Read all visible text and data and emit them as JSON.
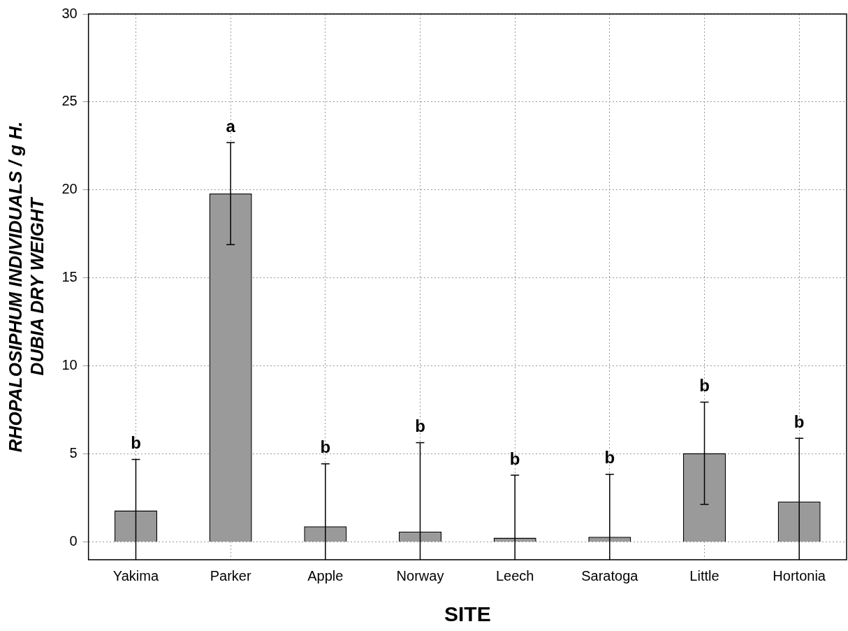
{
  "chart_data": {
    "type": "bar",
    "xlabel": "SITE",
    "ylabel": "RHOPALOSIPHUM INDIVIDUALS / g H. DUBIA DRY WEIGHT",
    "categories": [
      "Yakima",
      "Parker",
      "Apple",
      "Norway",
      "Leech",
      "Saratoga",
      "Little",
      "Hortonia"
    ],
    "values": [
      1.8,
      19.8,
      0.9,
      0.6,
      0.25,
      0.3,
      5.05,
      2.3
    ],
    "errors": [
      [
        -1,
        4.7
      ],
      [
        16.9,
        22.7
      ],
      [
        -1,
        4.45
      ],
      [
        -1,
        5.65
      ],
      [
        -1,
        3.8
      ],
      [
        -1,
        3.85
      ],
      [
        2.15,
        7.95
      ],
      [
        -1,
        5.9
      ]
    ],
    "color": "#9a9a9a",
    "ylim": [
      -1,
      30
    ],
    "yticks": [
      0,
      5,
      10,
      15,
      20,
      25,
      30
    ],
    "grid": true,
    "legend": false,
    "annotations": [
      {
        "text": "b",
        "x": "Yakima",
        "y": 4.7
      },
      {
        "text": "a",
        "x": "Parker",
        "y": 22.7
      },
      {
        "text": "b",
        "x": "Apple",
        "y": 4.45
      },
      {
        "text": "b",
        "x": "Norway",
        "y": 5.65
      },
      {
        "text": "b",
        "x": "Leech",
        "y": 3.8
      },
      {
        "text": "b",
        "x": "Saratoga",
        "y": 3.85
      },
      {
        "text": "b",
        "x": "Little",
        "y": 7.95
      },
      {
        "text": "b",
        "x": "Hortonia",
        "y": 5.9
      }
    ]
  }
}
